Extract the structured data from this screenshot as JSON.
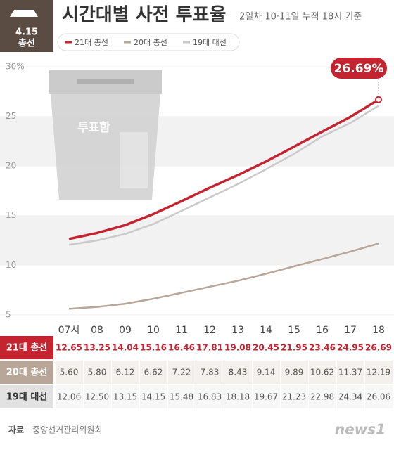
{
  "badge": {
    "line1": "4.15",
    "line2": "총선"
  },
  "illustration": {
    "label": "투표함"
  },
  "source": {
    "label": "자료",
    "text": "중앙선거관리위원회"
  },
  "logo": "news1",
  "chart_data": {
    "type": "line",
    "title": "시간대별 사전 투표율",
    "subtitle": "2일차 10·11일 누적 18시 기준",
    "categories": [
      "07시",
      "08",
      "09",
      "10",
      "11",
      "12",
      "13",
      "14",
      "15",
      "16",
      "17",
      "18"
    ],
    "series": [
      {
        "name": "21대 총선",
        "color": "#c4242f",
        "values": [
          12.65,
          13.25,
          14.04,
          15.16,
          16.46,
          17.81,
          19.08,
          20.45,
          21.95,
          23.46,
          24.95,
          26.69
        ],
        "value_labels": [
          "12.65",
          "13.25",
          "14.04",
          "15.16",
          "16.46",
          "17.81",
          "19.08",
          "20.45",
          "21.95",
          "23.46",
          "24.95",
          "26.69"
        ]
      },
      {
        "name": "20대 총선",
        "color": "#b8a798",
        "values": [
          5.6,
          5.8,
          6.12,
          6.62,
          7.22,
          7.83,
          8.43,
          9.14,
          9.89,
          10.62,
          11.37,
          12.19
        ],
        "value_labels": [
          "5.60",
          "5.80",
          "6.12",
          "6.62",
          "7.22",
          "7.83",
          "8.43",
          "9.14",
          "9.89",
          "10.62",
          "11.37",
          "12.19"
        ]
      },
      {
        "name": "19대 대선",
        "color": "#cacaca",
        "values": [
          12.06,
          12.5,
          13.15,
          14.15,
          15.48,
          16.83,
          18.18,
          19.67,
          21.23,
          22.98,
          24.34,
          26.06
        ],
        "value_labels": [
          "12.06",
          "12.50",
          "13.15",
          "14.15",
          "15.48",
          "16.83",
          "18.18",
          "19.67",
          "21.23",
          "22.98",
          "24.34",
          "26.06"
        ]
      }
    ],
    "annotation": "26.69%",
    "ylim": [
      4,
      30
    ],
    "yticks": [
      5,
      10,
      15,
      20,
      25,
      {
        "value": 30,
        "label": "30%"
      }
    ],
    "grid": "bands"
  }
}
